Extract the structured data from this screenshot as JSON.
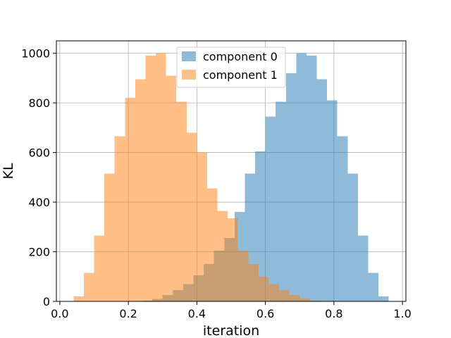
{
  "chart_data": {
    "type": "histogram",
    "xlabel": "iteration",
    "ylabel": "KL",
    "xlim": [
      -0.01,
      1.01
    ],
    "ylim": [
      0,
      1050
    ],
    "grid": true,
    "legend_position": "top-center",
    "bin_width": 0.03,
    "xticks": [
      0.0,
      0.2,
      0.4,
      0.6,
      0.8,
      1.0
    ],
    "xtick_labels": [
      "0.0",
      "0.2",
      "0.4",
      "0.6",
      "0.8",
      "1.0"
    ],
    "yticks": [
      0,
      200,
      400,
      600,
      800,
      1000
    ],
    "ytick_labels": [
      "0",
      "200",
      "400",
      "600",
      "800",
      "1000"
    ],
    "series": [
      {
        "name": "component 0",
        "color": "#1f77b4",
        "alpha": 0.5,
        "bin_starts": [
          0.21,
          0.24,
          0.27,
          0.3,
          0.33,
          0.36,
          0.39,
          0.42,
          0.45,
          0.48,
          0.51,
          0.54,
          0.57,
          0.6,
          0.63,
          0.66,
          0.69,
          0.72,
          0.75,
          0.78,
          0.81,
          0.84,
          0.87,
          0.9,
          0.93
        ],
        "values": [
          1,
          3,
          10,
          25,
          45,
          70,
          105,
          150,
          205,
          255,
          360,
          515,
          605,
          745,
          805,
          920,
          1000,
          990,
          895,
          810,
          665,
          515,
          265,
          115,
          20
        ]
      },
      {
        "name": "component 1",
        "color": "#ff7f0e",
        "alpha": 0.5,
        "bin_starts": [
          0.04,
          0.07,
          0.1,
          0.13,
          0.16,
          0.19,
          0.22,
          0.25,
          0.28,
          0.31,
          0.34,
          0.37,
          0.4,
          0.43,
          0.46,
          0.49,
          0.52,
          0.55,
          0.58,
          0.61,
          0.64,
          0.67,
          0.7,
          0.73,
          0.76
        ],
        "values": [
          20,
          115,
          265,
          515,
          665,
          820,
          895,
          990,
          1000,
          910,
          805,
          680,
          600,
          455,
          365,
          335,
          205,
          150,
          100,
          70,
          45,
          25,
          12,
          3,
          1
        ]
      }
    ]
  }
}
